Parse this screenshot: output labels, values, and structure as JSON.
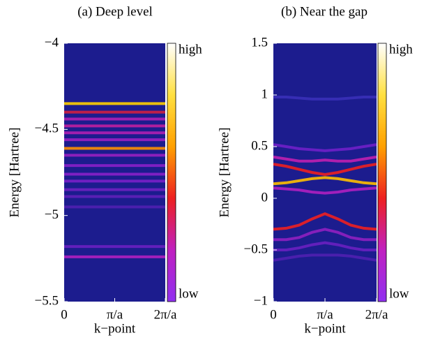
{
  "chart_data": [
    {
      "type": "heatmap",
      "title": "(a) Deep level",
      "xlabel": "k−point",
      "ylabel": "Energy [Hartree]",
      "xlim": [
        0,
        2
      ],
      "xticks": [
        0,
        {
          "value": 1,
          "label": "π/a"
        },
        {
          "value": 2,
          "label": "2π/a"
        }
      ],
      "ylim": [
        -5.5,
        -4
      ],
      "yticks": [
        {
          "value": -5.5,
          "label": "−5.5"
        },
        {
          "value": -5,
          "label": "−5"
        },
        {
          "value": -4.5,
          "label": "−4.5"
        },
        {
          "value": -4,
          "label": "−4"
        }
      ],
      "background": "#1c1c8e",
      "colormap": [
        "#9030f0",
        "#c020c0",
        "#ee2020",
        "#ffa000",
        "#ffe040",
        "#ffffff"
      ],
      "colorbar_labels": [
        "low",
        "high"
      ],
      "x": [
        0,
        2
      ],
      "series": [
        {
          "color": "#ffd000",
          "values": [
            -4.35,
            -4.35
          ]
        },
        {
          "color": "#d02040",
          "values": [
            -4.4,
            -4.4
          ]
        },
        {
          "color": "#b020b0",
          "values": [
            -4.44,
            -4.44
          ]
        },
        {
          "color": "#c020a0",
          "values": [
            -4.48,
            -4.48
          ]
        },
        {
          "color": "#b020b0",
          "values": [
            -4.52,
            -4.52
          ]
        },
        {
          "color": "#9a20c0",
          "values": [
            -4.56,
            -4.56
          ]
        },
        {
          "color": "#ff9000",
          "values": [
            -4.61,
            -4.61
          ]
        },
        {
          "color": "#9a20c0",
          "values": [
            -4.65,
            -4.65
          ]
        },
        {
          "color": "#8a20c8",
          "values": [
            -4.71,
            -4.71
          ]
        },
        {
          "color": "#8a20c8",
          "values": [
            -4.76,
            -4.76
          ]
        },
        {
          "color": "#7a20c8",
          "values": [
            -4.8,
            -4.8
          ]
        },
        {
          "color": "#7020c0",
          "values": [
            -4.85,
            -4.85
          ]
        },
        {
          "color": "#6020b8",
          "values": [
            -4.89,
            -4.89
          ]
        },
        {
          "color": "#5020b0",
          "values": [
            -4.95,
            -4.95
          ]
        },
        {
          "color": "#6a20c0",
          "values": [
            -5.18,
            -5.18
          ]
        },
        {
          "color": "#b020c0",
          "values": [
            -5.24,
            -5.24
          ]
        }
      ]
    },
    {
      "type": "heatmap",
      "title": "(b) Near the gap",
      "xlabel": "k−point",
      "ylabel": "Energy [Hartree]",
      "xlim": [
        0,
        2
      ],
      "xticks": [
        0,
        {
          "value": 1,
          "label": "π/a"
        },
        {
          "value": 2,
          "label": "2π/a"
        }
      ],
      "ylim": [
        -1,
        1.5
      ],
      "yticks": [
        {
          "value": -1,
          "label": "−1"
        },
        {
          "value": -0.5,
          "label": "−0.5"
        },
        0,
        0.5,
        1,
        1.5
      ],
      "background": "#1c1c8e",
      "colormap": [
        "#9030f0",
        "#c020c0",
        "#ee2020",
        "#ffa000",
        "#ffe040",
        "#ffffff"
      ],
      "colorbar_labels": [
        "low",
        "high"
      ],
      "x": [
        0,
        0.25,
        0.5,
        0.75,
        1,
        1.25,
        1.5,
        1.75,
        2
      ],
      "series": [
        {
          "color": "#3a30b8",
          "values": [
            0.98,
            0.98,
            0.97,
            0.96,
            0.96,
            0.96,
            0.97,
            0.98,
            0.98
          ]
        },
        {
          "color": "#7020c8",
          "values": [
            0.52,
            0.5,
            0.48,
            0.47,
            0.46,
            0.47,
            0.48,
            0.5,
            0.52
          ]
        },
        {
          "color": "#c020b0",
          "values": [
            0.4,
            0.38,
            0.36,
            0.36,
            0.37,
            0.36,
            0.36,
            0.38,
            0.4
          ]
        },
        {
          "color": "#ee2020",
          "values": [
            0.33,
            0.31,
            0.28,
            0.25,
            0.23,
            0.25,
            0.28,
            0.31,
            0.33
          ]
        },
        {
          "color": "#ffc000",
          "values": [
            0.14,
            0.15,
            0.17,
            0.19,
            0.2,
            0.19,
            0.17,
            0.15,
            0.14
          ]
        },
        {
          "color": "#b020c0",
          "values": [
            0.1,
            0.09,
            0.08,
            0.06,
            0.05,
            0.06,
            0.08,
            0.09,
            0.1
          ]
        },
        {
          "color": "#ee2020",
          "values": [
            -0.3,
            -0.29,
            -0.26,
            -0.2,
            -0.15,
            -0.2,
            -0.26,
            -0.29,
            -0.3
          ]
        },
        {
          "color": "#9020c0",
          "values": [
            -0.4,
            -0.4,
            -0.38,
            -0.33,
            -0.3,
            -0.33,
            -0.38,
            -0.4,
            -0.4
          ]
        },
        {
          "color": "#6a20c0",
          "values": [
            -0.5,
            -0.5,
            -0.48,
            -0.45,
            -0.43,
            -0.45,
            -0.48,
            -0.5,
            -0.5
          ]
        },
        {
          "color": "#5020b0",
          "values": [
            -0.6,
            -0.58,
            -0.56,
            -0.55,
            -0.55,
            -0.55,
            -0.56,
            -0.58,
            -0.6
          ]
        }
      ]
    }
  ]
}
